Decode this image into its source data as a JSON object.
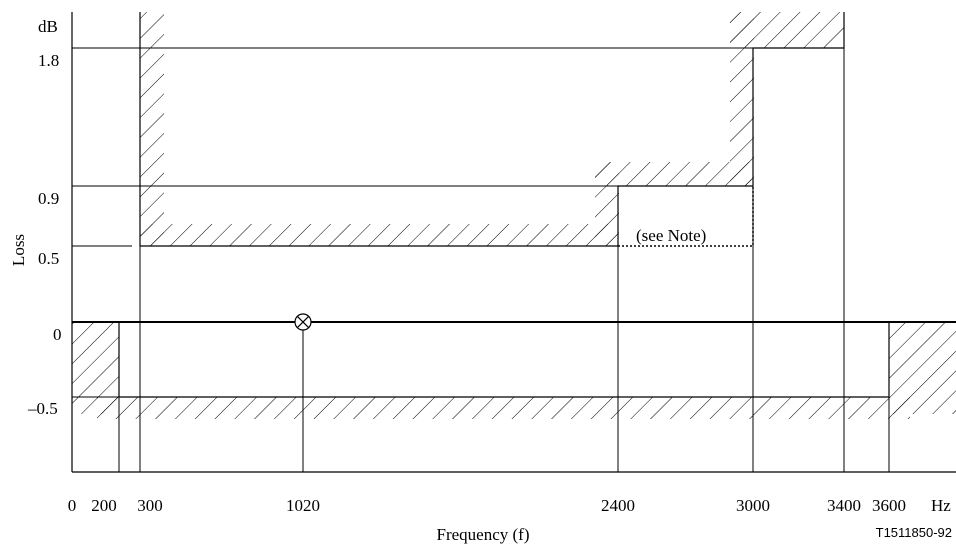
{
  "chart_data": {
    "type": "line",
    "title": "",
    "xlabel": "Frequency (f)",
    "ylabel": "Loss",
    "y_unit": "dB",
    "x_unit": "Hz",
    "x_ticks": [
      "0",
      "200",
      "300",
      "1020",
      "2400",
      "3000",
      "3400",
      "3600"
    ],
    "y_ticks": [
      "1.8",
      "0.9",
      "0.5",
      "0",
      "–0.5"
    ],
    "series": [
      {
        "name": "",
        "x": [
          300,
          300,
          2400,
          2400,
          3000,
          3000,
          3400
        ],
        "y": [
          2.0,
          0.5,
          0.5,
          0.9,
          0.9,
          1.8,
          1.8
        ]
      },
      {
        "name": "",
        "x": [
          200,
          200,
          3600,
          3600
        ],
        "y": [
          0,
          -0.5,
          -0.5,
          0
        ]
      }
    ],
    "reference_point": {
      "x": 1020,
      "y": 0
    },
    "annotations": [
      "(see Note)"
    ],
    "figure_code": "T1511850-92"
  }
}
